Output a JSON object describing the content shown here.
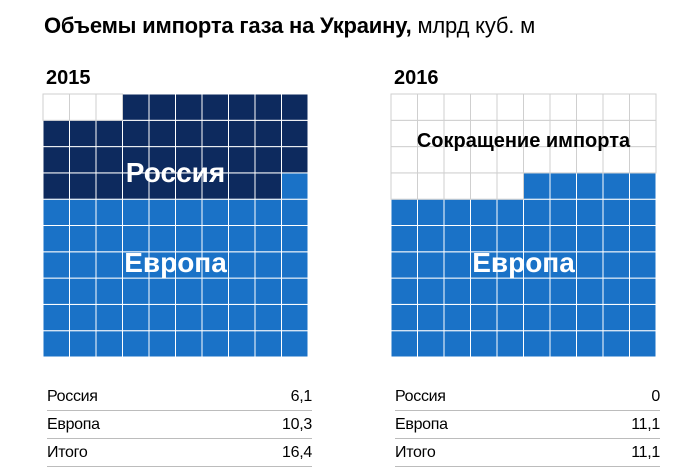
{
  "title": {
    "main": "Объемы импорта газа на Украину,",
    "unit": "млрд куб. м"
  },
  "colors": {
    "russia": "#0d2a5e",
    "europe": "#1a72c7",
    "empty": "#ffffff",
    "grid_line_dark": "#ffffff",
    "grid_line_empty": "#cfcfcf"
  },
  "chart_data": [
    {
      "type": "waffle",
      "title": "2015",
      "cell_value": 0.1,
      "series": [
        {
          "name": "Россия",
          "value": 6.1
        },
        {
          "name": "Европа",
          "value": 10.3
        }
      ],
      "total": 16.4,
      "labels_on_chart": [
        "Россия",
        "Европа"
      ]
    },
    {
      "type": "waffle",
      "title": "2016",
      "cell_value": 0.1,
      "series": [
        {
          "name": "Россия",
          "value": 0
        },
        {
          "name": "Европа",
          "value": 11.1
        }
      ],
      "total": 11.1,
      "labels_on_chart": [
        "Сокращение импорта",
        "Европа"
      ]
    }
  ],
  "tables": [
    {
      "rows": [
        {
          "label": "Россия",
          "value": "6,1"
        },
        {
          "label": "Европа",
          "value": "10,3"
        },
        {
          "label": "Итого",
          "value": "16,4"
        }
      ]
    },
    {
      "rows": [
        {
          "label": "Россия",
          "value": "0"
        },
        {
          "label": "Европа",
          "value": "11,1"
        },
        {
          "label": "Итого",
          "value": "11,1"
        }
      ]
    }
  ]
}
